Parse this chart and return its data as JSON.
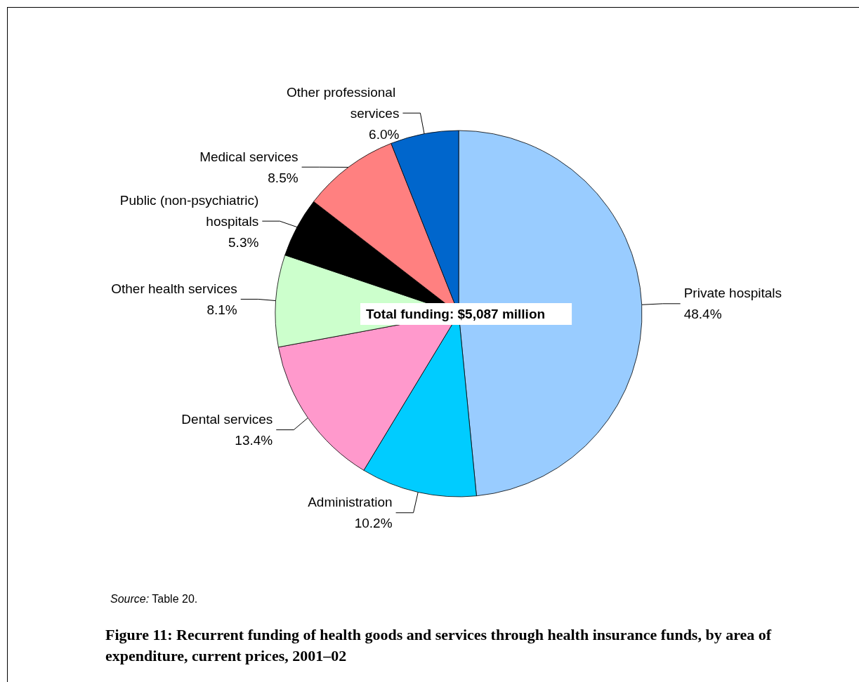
{
  "chart_data": {
    "type": "pie",
    "title": "Figure 11: Recurrent funding of health goods and services through health insurance funds, by area of expenditure, current prices, 2001–02",
    "categories": [
      "Private hospitals",
      "Administration",
      "Dental services",
      "Other health services",
      "Public (non-psychiatric) hospitals",
      "Medical services",
      "Other professional services"
    ],
    "values": [
      48.4,
      10.2,
      13.4,
      8.1,
      5.3,
      8.5,
      6.0
    ],
    "value_labels": [
      "48.4%",
      "10.2%",
      "13.4%",
      "8.1%",
      "5.3%",
      "8.5%",
      "6.0%"
    ],
    "colors": [
      "#99ccff",
      "#00ccff",
      "#ff99cc",
      "#ccffcc",
      "#000000",
      "#ff8080",
      "#0066cc"
    ],
    "annotations": [
      "Total funding: $5,087 million",
      "Source: Table 20."
    ],
    "legend": false
  }
}
